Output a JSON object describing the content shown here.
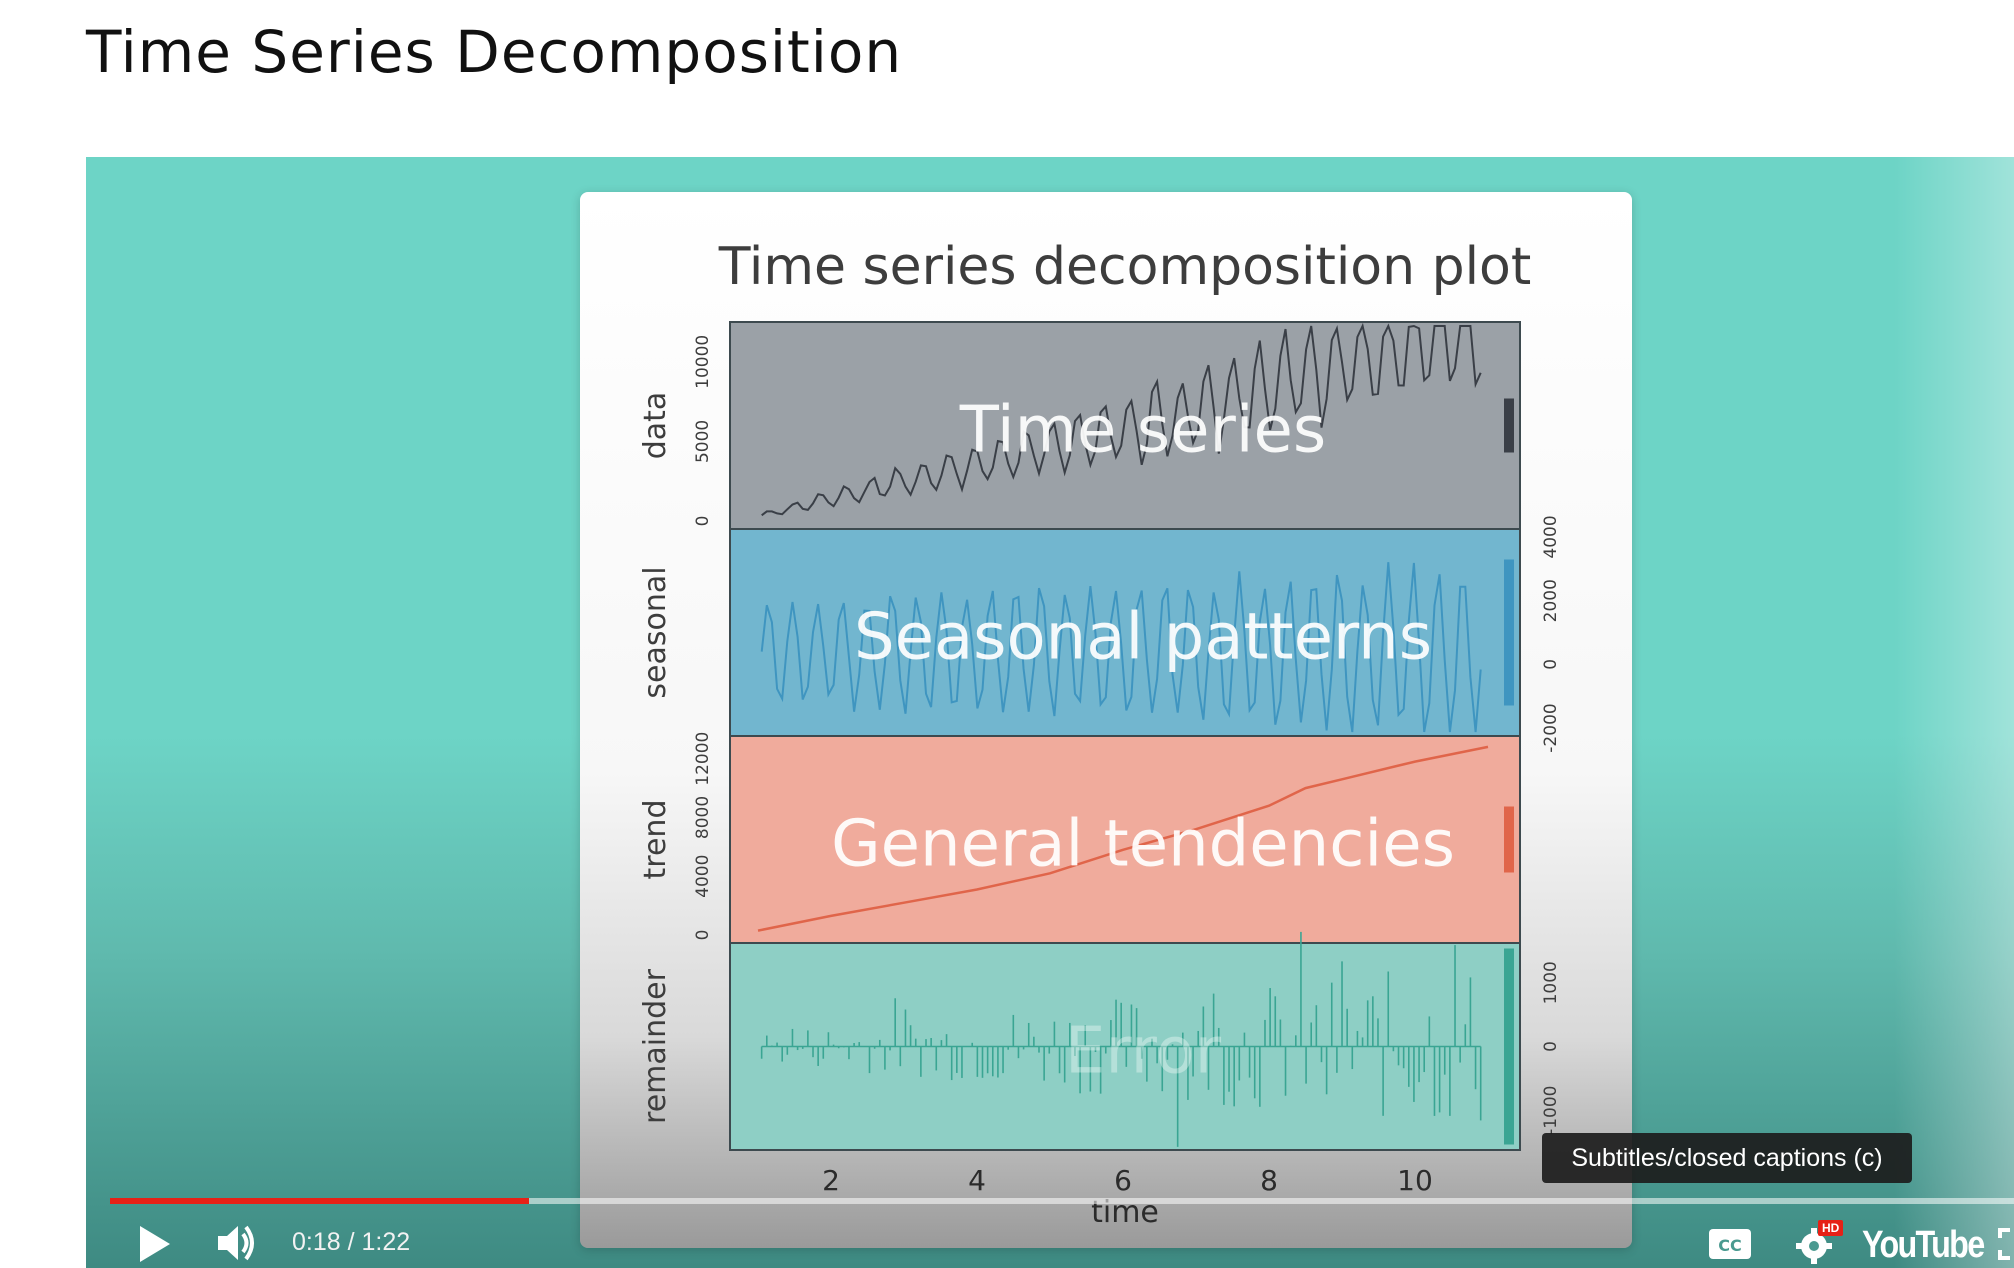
{
  "page": {
    "title": "Time Series Decomposition"
  },
  "video": {
    "current_time": "0:18",
    "duration": "1:22",
    "time_display": "0:18 / 1:22",
    "progress_fraction": 0.22,
    "tooltip": "Subtitles/closed captions (c)",
    "hd_badge": "HD",
    "brand": "YouTube",
    "colors": {
      "progress": "#e62117",
      "player_bg": "#6dd4c6"
    },
    "icons": [
      "play-icon",
      "volume-icon",
      "captions-icon",
      "settings-gear-icon",
      "youtube-logo",
      "fullscreen-icon"
    ]
  },
  "slide": {
    "title": "Time series decomposition plot",
    "xlabel": "time",
    "x_ticks": [
      "2",
      "4",
      "6",
      "8",
      "10"
    ],
    "panels": [
      {
        "key": "data",
        "ylabel": "data",
        "overlay": "Time series",
        "ticks": [
          "0",
          "5000",
          "10000"
        ],
        "ticks_side": "left",
        "color": "#9ba1a7",
        "line_color": "#3a3f47"
      },
      {
        "key": "seasonal",
        "ylabel": "seasonal",
        "overlay": "Seasonal patterns",
        "ticks": [
          "-2000",
          "0",
          "2000",
          "4000"
        ],
        "ticks_side": "right",
        "color": "#72b6cf",
        "line_color": "#3f95c0"
      },
      {
        "key": "trend",
        "ylabel": "trend",
        "overlay": "General tendencies",
        "ticks": [
          "0",
          "4000",
          "8000",
          "12000"
        ],
        "ticks_side": "left",
        "color": "#f0ab9c",
        "line_color": "#e0654a"
      },
      {
        "key": "remainder",
        "ylabel": "remainder",
        "overlay": "Error",
        "ticks": [
          "-1000",
          "0",
          "1000"
        ],
        "ticks_side": "right",
        "color": "#8ecfc5",
        "line_color": "#3aa593"
      }
    ]
  },
  "chart_data": {
    "type": "line",
    "title": "Time series decomposition plot",
    "xlabel": "time",
    "xlim": [
      1,
      11
    ],
    "x_ticks": [
      2,
      4,
      6,
      8,
      10
    ],
    "panels": [
      {
        "name": "data",
        "ylim": [
          0,
          12000
        ],
        "ticks": [
          0,
          5000,
          10000
        ]
      },
      {
        "name": "seasonal",
        "ylim": [
          -2000,
          4000
        ],
        "ticks": [
          -2000,
          0,
          2000,
          4000
        ]
      },
      {
        "name": "trend",
        "ylim": [
          0,
          13000
        ],
        "ticks": [
          0,
          4000,
          8000,
          12000
        ]
      },
      {
        "name": "remainder",
        "ylim": [
          -1500,
          1500
        ],
        "ticks": [
          -1000,
          0,
          1000
        ]
      }
    ],
    "trend_samples": {
      "x": [
        1,
        2,
        3,
        4,
        5,
        6,
        7,
        8,
        8.5,
        9,
        10,
        11
      ],
      "y": [
        300,
        1300,
        2200,
        3100,
        4200,
        5800,
        7200,
        8800,
        10000,
        10600,
        11800,
        12800
      ]
    }
  }
}
